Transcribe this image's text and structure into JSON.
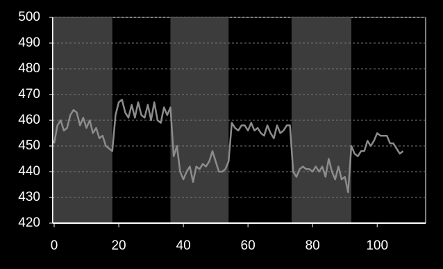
{
  "chart_data": {
    "type": "line",
    "x": [
      0,
      1,
      2,
      3,
      4,
      5,
      6,
      7,
      8,
      9,
      10,
      11,
      12,
      13,
      14,
      15,
      16,
      17,
      18,
      19,
      20,
      21,
      22,
      23,
      24,
      25,
      26,
      27,
      28,
      29,
      30,
      31,
      32,
      33,
      34,
      35,
      36,
      37,
      38,
      39,
      40,
      41,
      42,
      43,
      44,
      45,
      46,
      47,
      48,
      49,
      50,
      51,
      52,
      53,
      54,
      55,
      56,
      57,
      58,
      59,
      60,
      61,
      62,
      63,
      64,
      65,
      66,
      67,
      68,
      69,
      70,
      71,
      72,
      73,
      74,
      75,
      76,
      77,
      78,
      79,
      80,
      81,
      82,
      83,
      84,
      85,
      86,
      87,
      88,
      89,
      90,
      91,
      92,
      93,
      94,
      95,
      96,
      97,
      98,
      99,
      100,
      101,
      102,
      103,
      104,
      105,
      106,
      107,
      108
    ],
    "series": [
      {
        "color": "#8c8c8c",
        "values": [
          451,
          458,
          460,
          456,
          457,
          462,
          464,
          463,
          458,
          461,
          457,
          460,
          455,
          457,
          453,
          454,
          450,
          449,
          448,
          462,
          467,
          468,
          463,
          461,
          466,
          461,
          467,
          462,
          461,
          466,
          460,
          467,
          460,
          459,
          465,
          462,
          465,
          446,
          450,
          440,
          437,
          440,
          442,
          436,
          442,
          441,
          443,
          442,
          444,
          448,
          444,
          440,
          440,
          441,
          444,
          459,
          457,
          456,
          458,
          458,
          456,
          459,
          456,
          457,
          455,
          454,
          458,
          455,
          453,
          458,
          455,
          456,
          458,
          458,
          440,
          438,
          441,
          442,
          441,
          441,
          440,
          442,
          440,
          442,
          438,
          445,
          440,
          437,
          442,
          437,
          438,
          432,
          450,
          447,
          446,
          448,
          448,
          452,
          450,
          452,
          455,
          454,
          454,
          454,
          451,
          451,
          449,
          447,
          448
        ]
      }
    ],
    "bands": [
      [
        0,
        18
      ],
      [
        36,
        54
      ],
      [
        73.5,
        92
      ]
    ],
    "band_color": "#3c3c3c",
    "xlim": [
      0,
      115
    ],
    "xticks": [
      0,
      20,
      40,
      60,
      80,
      100
    ],
    "ylim": [
      420,
      500
    ],
    "yticks": [
      420,
      430,
      440,
      450,
      460,
      470,
      480,
      490,
      500
    ],
    "grid": true
  }
}
